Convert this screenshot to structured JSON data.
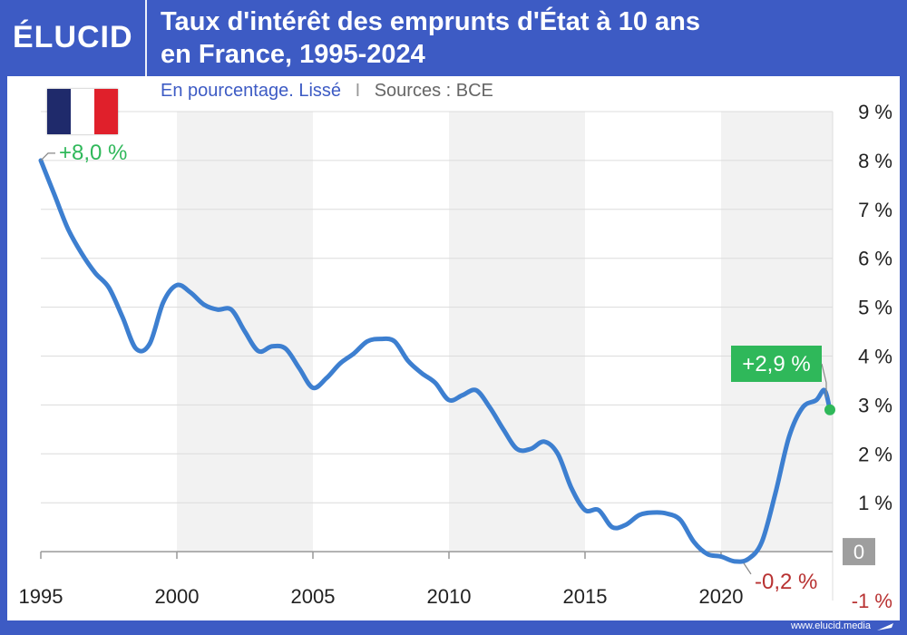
{
  "logo": {
    "text": "ÉLUCID"
  },
  "header": {
    "title_line1": "Taux d'intérêt des emprunts d'État à 10 ans",
    "title_line2": "en France, 1995-2024"
  },
  "subtitle": {
    "unit": "En pourcentage. Lissé",
    "separator": "I",
    "source": "Sources : BCE"
  },
  "footer": {
    "url": "www.elucid.media"
  },
  "colors": {
    "brand": "#3d5bc4",
    "line": "#3d7fd0",
    "positive": "#2fb85a",
    "negative": "#b83232",
    "zero_badge": "#9e9e9e",
    "flag_blue": "#1f2a6b",
    "flag_white": "#ffffff",
    "flag_red": "#e0202b"
  },
  "icons": {
    "flag": "france-flag-icon",
    "footer": "elucid-pen-icon"
  },
  "chart_data": {
    "type": "line",
    "title": "Taux d'intérêt des emprunts d'État à 10 ans en France, 1995-2024",
    "subtitle": "En pourcentage. Lissé",
    "source": "Sources : BCE",
    "xlabel": "",
    "ylabel": "",
    "xlim": [
      1995,
      2024.1
    ],
    "ylim": [
      -1,
      9
    ],
    "x_ticks": [
      "1995",
      "2000",
      "2005",
      "2010",
      "2015",
      "2020"
    ],
    "x_tick_values": [
      1995,
      2000,
      2005,
      2010,
      2015,
      2020
    ],
    "y_ticks": [
      "9 %",
      "8 %",
      "7 %",
      "6 %",
      "5 %",
      "4 %",
      "3 %",
      "2 %",
      "1 %",
      "0",
      "-1 %"
    ],
    "y_tick_values": [
      9,
      8,
      7,
      6,
      5,
      4,
      3,
      2,
      1,
      0,
      -1
    ],
    "grid": true,
    "alternating_bands": true,
    "series": [
      {
        "x": [
          1995.0,
          1995.5,
          1996.0,
          1996.5,
          1997.0,
          1997.5,
          1998.0,
          1998.5,
          1999.0,
          1999.5,
          2000.0,
          2000.5,
          2001.0,
          2001.5,
          2002.0,
          2002.5,
          2003.0,
          2003.5,
          2004.0,
          2004.5,
          2005.0,
          2005.5,
          2006.0,
          2006.5,
          2007.0,
          2007.5,
          2008.0,
          2008.5,
          2009.0,
          2009.5,
          2010.0,
          2010.5,
          2011.0,
          2011.5,
          2012.0,
          2012.5,
          2013.0,
          2013.5,
          2014.0,
          2014.5,
          2015.0,
          2015.5,
          2016.0,
          2016.5,
          2017.0,
          2017.5,
          2018.0,
          2018.5,
          2019.0,
          2019.5,
          2020.0,
          2020.5,
          2021.0,
          2021.5,
          2022.0,
          2022.5,
          2023.0,
          2023.5,
          2023.8,
          2024.0
        ],
        "values": [
          8.0,
          7.3,
          6.6,
          6.1,
          5.7,
          5.4,
          4.8,
          4.15,
          4.25,
          5.1,
          5.45,
          5.3,
          5.05,
          4.95,
          4.95,
          4.5,
          4.1,
          4.2,
          4.15,
          3.75,
          3.35,
          3.55,
          3.85,
          4.05,
          4.3,
          4.35,
          4.3,
          3.9,
          3.65,
          3.45,
          3.1,
          3.2,
          3.3,
          2.95,
          2.5,
          2.1,
          2.1,
          2.25,
          2.0,
          1.3,
          0.85,
          0.85,
          0.5,
          0.55,
          0.75,
          0.8,
          0.78,
          0.65,
          0.2,
          -0.05,
          -0.1,
          -0.2,
          -0.15,
          0.2,
          1.2,
          2.35,
          2.95,
          3.1,
          3.3,
          2.9
        ]
      }
    ],
    "annotations": [
      {
        "text": "+8,0 %",
        "x": 1995.0,
        "y": 8.0,
        "style": "positive"
      },
      {
        "text": "-0,2 %",
        "x": 2020.5,
        "y": -0.2,
        "style": "negative"
      },
      {
        "text": "+2,9 %",
        "x": 2024.0,
        "y": 2.9,
        "style": "positive-badge"
      }
    ]
  }
}
